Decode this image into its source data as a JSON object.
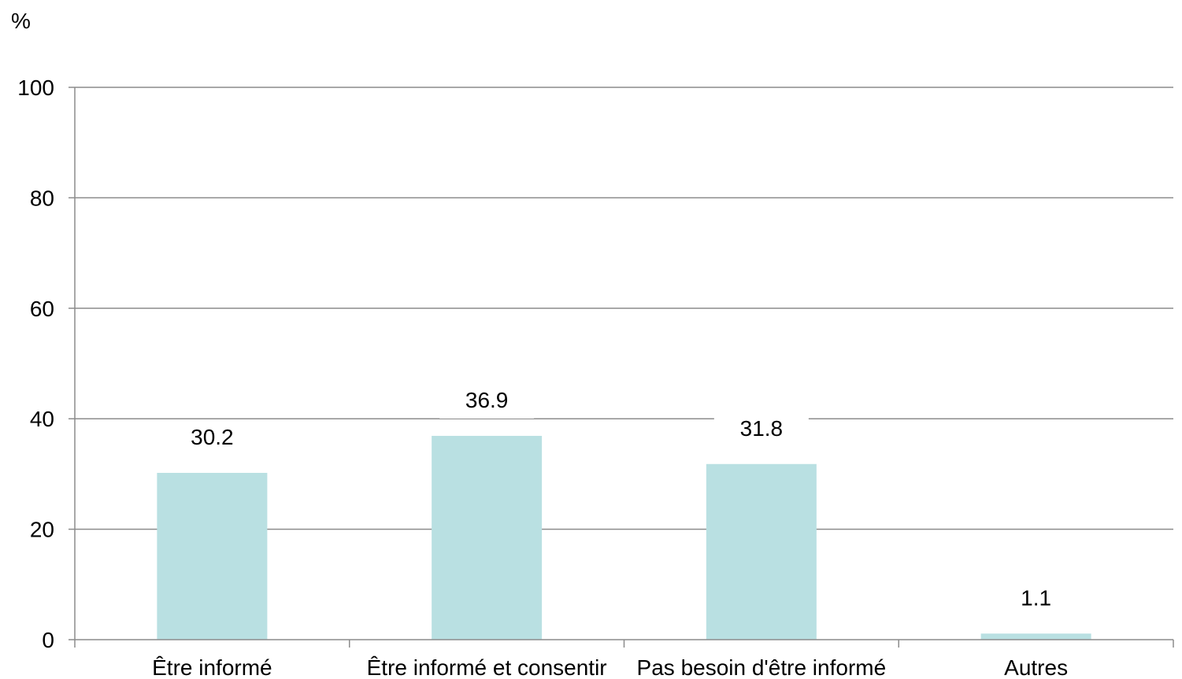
{
  "chart_data": {
    "type": "bar",
    "ylabel": "%",
    "ylim": [
      0,
      100
    ],
    "yticks": [
      0,
      20,
      40,
      60,
      80,
      100
    ],
    "categories": [
      "Être informé",
      "Être informé et consentir",
      "Pas besoin d'être informé",
      "Autres"
    ],
    "values": [
      30.2,
      36.9,
      31.8,
      1.1
    ],
    "value_labels": [
      "30.2",
      "36.9",
      "31.8",
      "1.1"
    ],
    "grid": true,
    "legend": false,
    "bar_color": "#b9e0e2"
  }
}
